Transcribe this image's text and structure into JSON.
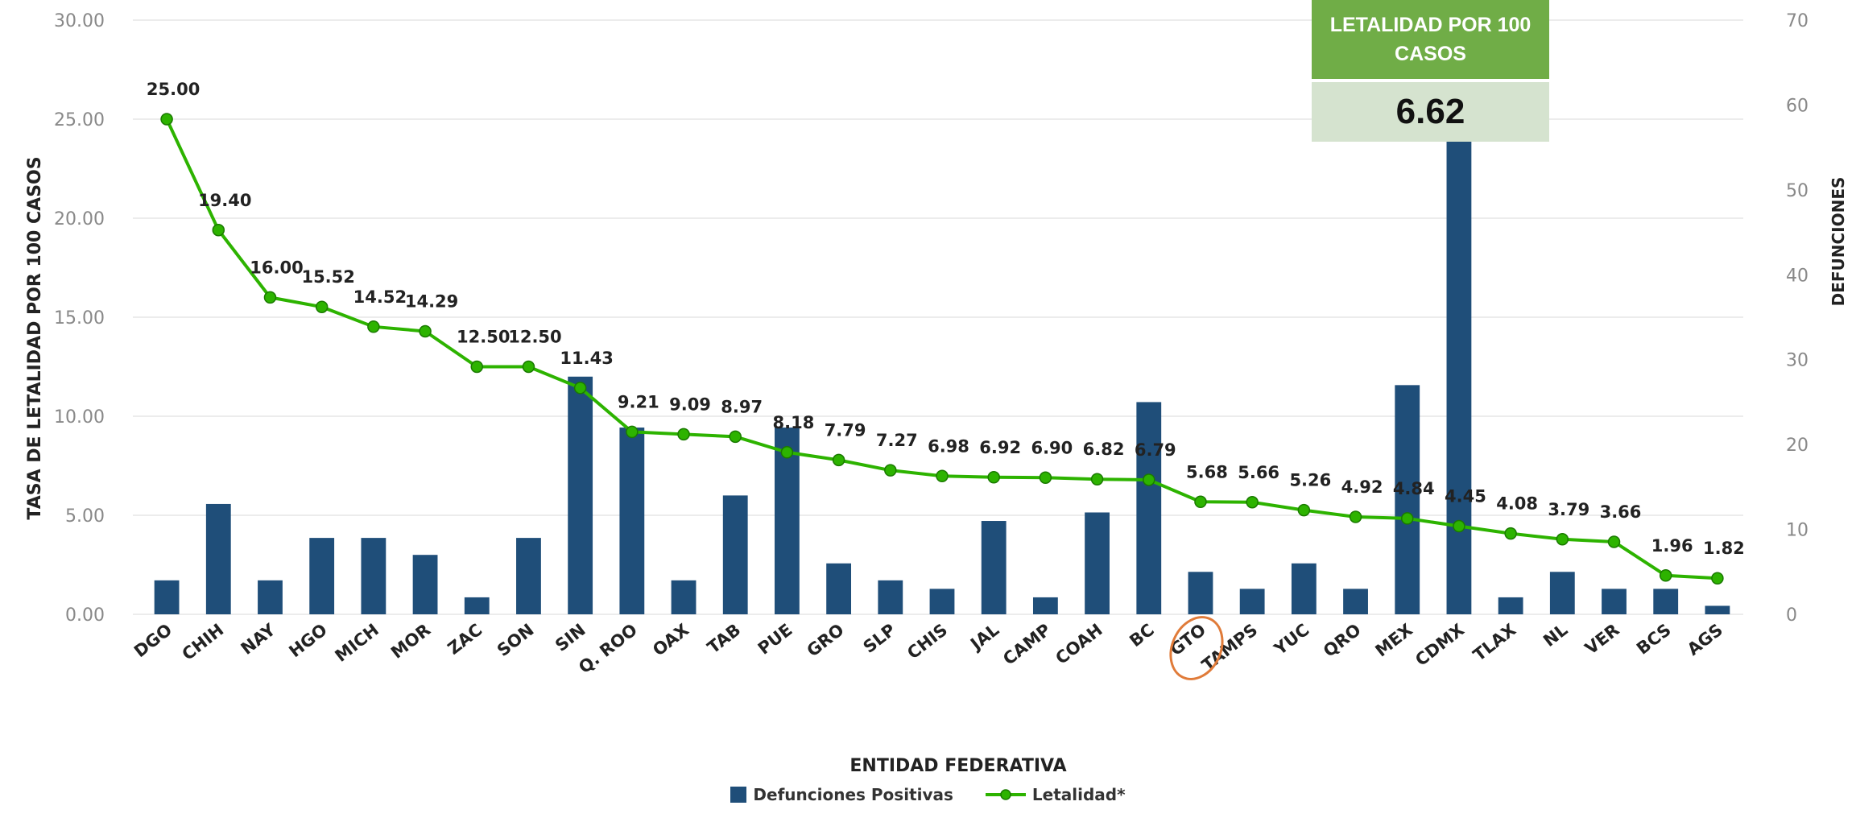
{
  "kpi": {
    "title": "LETALIDAD POR 100 CASOS",
    "value": "6.62"
  },
  "colors": {
    "bar": "#1f4e79",
    "line": "#2db300",
    "marker_fill": "#2db300",
    "kpi_header": "#70ad47",
    "kpi_value_bg": "#d5e3cf",
    "highlight_circle": "#e07b39",
    "grid": "#e5e5e5",
    "axis_text": "#888888"
  },
  "chart_data": {
    "type": "bar",
    "xlabel": "ENTIDAD FEDERATIVA",
    "ylabel": "TASA DE LETALIDAD POR 100 CASOS",
    "y2label": "DEFUNCIONES",
    "ylim": [
      0,
      30
    ],
    "y2lim": [
      0,
      70
    ],
    "yticks": [
      "0.00",
      "5.00",
      "10.00",
      "15.00",
      "20.00",
      "25.00",
      "30.00"
    ],
    "y2ticks": [
      "0",
      "10",
      "20",
      "30",
      "40",
      "50",
      "60",
      "70"
    ],
    "grid": true,
    "legend_position": "bottom",
    "highlighted_category": "GTO",
    "categories": [
      "DGO",
      "CHIH",
      "NAY",
      "HGO",
      "MICH",
      "MOR",
      "ZAC",
      "SON",
      "SIN",
      "Q. ROO",
      "OAX",
      "TAB",
      "PUE",
      "GRO",
      "SLP",
      "CHIS",
      "JAL",
      "CAMP",
      "COAH",
      "BC",
      "GTO",
      "TAMPS",
      "YUC",
      "QRO",
      "MEX",
      "CDMX",
      "TLAX",
      "NL",
      "VER",
      "BCS",
      "AGS"
    ],
    "series": [
      {
        "name": "Defunciones Positivas",
        "type": "bar",
        "axis": "right",
        "values": [
          4,
          13,
          4,
          9,
          9,
          7,
          2,
          9,
          28,
          22,
          4,
          14,
          22,
          6,
          4,
          3,
          11,
          2,
          12,
          25,
          5,
          3,
          6,
          3,
          27,
          57,
          2,
          5,
          3,
          3,
          1
        ]
      },
      {
        "name": "Letalidad*",
        "type": "line",
        "axis": "left",
        "values": [
          25.0,
          19.4,
          16.0,
          15.52,
          14.52,
          14.29,
          12.5,
          12.5,
          11.43,
          9.21,
          9.09,
          8.97,
          8.18,
          7.79,
          7.27,
          6.98,
          6.92,
          6.9,
          6.82,
          6.79,
          5.68,
          5.66,
          5.26,
          4.92,
          4.84,
          4.45,
          4.08,
          3.79,
          3.66,
          1.96,
          1.82
        ]
      }
    ],
    "data_labels": [
      "25.00",
      "19.40",
      "16.00",
      "15.52",
      "14.52",
      "14.29",
      "12.50",
      "12.50",
      "11.43",
      "9.21",
      "9.09",
      "8.97",
      "8.18",
      "7.79",
      "7.27",
      "6.98",
      "6.92",
      "6.90",
      "6.82",
      "6.79",
      "5.68",
      "5.66",
      "5.26",
      "4.92",
      "4.84",
      "4.45",
      "4.08",
      "3.79",
      "3.66",
      "1.96",
      "1.82"
    ]
  }
}
